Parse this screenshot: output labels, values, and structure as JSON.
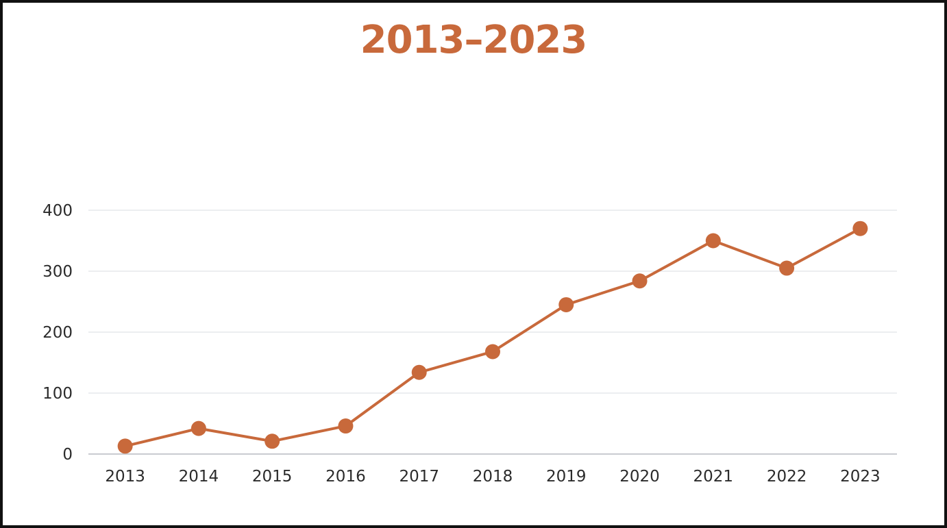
{
  "title": "2013–2023",
  "colors": {
    "accent": "#c8693b",
    "grid": "#e6e8ec",
    "axis": "#c9cbd0",
    "text": "#2b2b2b"
  },
  "chart_data": {
    "type": "line",
    "title": "2013–2023",
    "xlabel": "",
    "ylabel": "",
    "categories": [
      "2013",
      "2014",
      "2015",
      "2016",
      "2017",
      "2018",
      "2019",
      "2020",
      "2021",
      "2022",
      "2023"
    ],
    "series": [
      {
        "values": [
          13,
          42,
          21,
          46,
          134,
          168,
          245,
          284,
          350,
          305,
          370
        ]
      }
    ],
    "ylim": [
      0,
      400
    ],
    "yticks": [
      "0",
      "100",
      "200",
      "300",
      "400"
    ],
    "grid": true,
    "markers": true,
    "legend": "none"
  }
}
